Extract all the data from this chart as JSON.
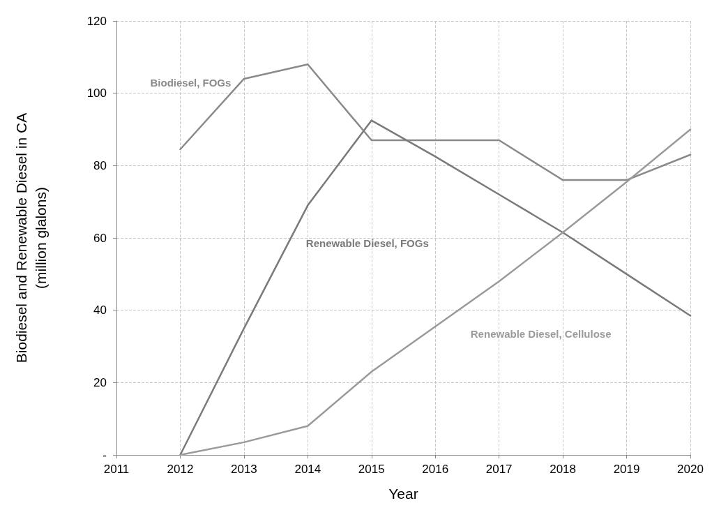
{
  "chart_data": {
    "type": "line",
    "xlabel": "Year",
    "ylabel": "Biodiesel and Renewable Diesel in CA\n(million glalons)",
    "x": [
      2012,
      2013,
      2014,
      2015,
      2016,
      2017,
      2018,
      2019,
      2020
    ],
    "series": [
      {
        "name": "Biodiesel, FOGs",
        "color": "#8a8a8a",
        "values": [
          84.5,
          104,
          108,
          87,
          87,
          87,
          76,
          76,
          83
        ]
      },
      {
        "name": "Renewable Diesel, FOGs",
        "color": "#7a7a7a",
        "values": [
          0,
          35,
          69,
          92.5,
          82.5,
          72,
          61.5,
          50,
          38.5
        ]
      },
      {
        "name": "Renewable Diesel, Cellulose",
        "color": "#9a9a9a",
        "values": [
          0,
          3.5,
          8,
          23,
          35.5,
          48,
          61.5,
          75.5,
          90
        ]
      }
    ],
    "xlim": [
      2011,
      2020
    ],
    "xticks": [
      2011,
      2012,
      2013,
      2014,
      2015,
      2016,
      2017,
      2018,
      2019,
      2020
    ],
    "ylim": [
      0,
      120
    ],
    "yticks": [
      {
        "value": 0,
        "label": "-"
      },
      20,
      40,
      60,
      80,
      100,
      120
    ],
    "grid": true,
    "legend": false,
    "marker": "none",
    "line_style": "solid"
  }
}
